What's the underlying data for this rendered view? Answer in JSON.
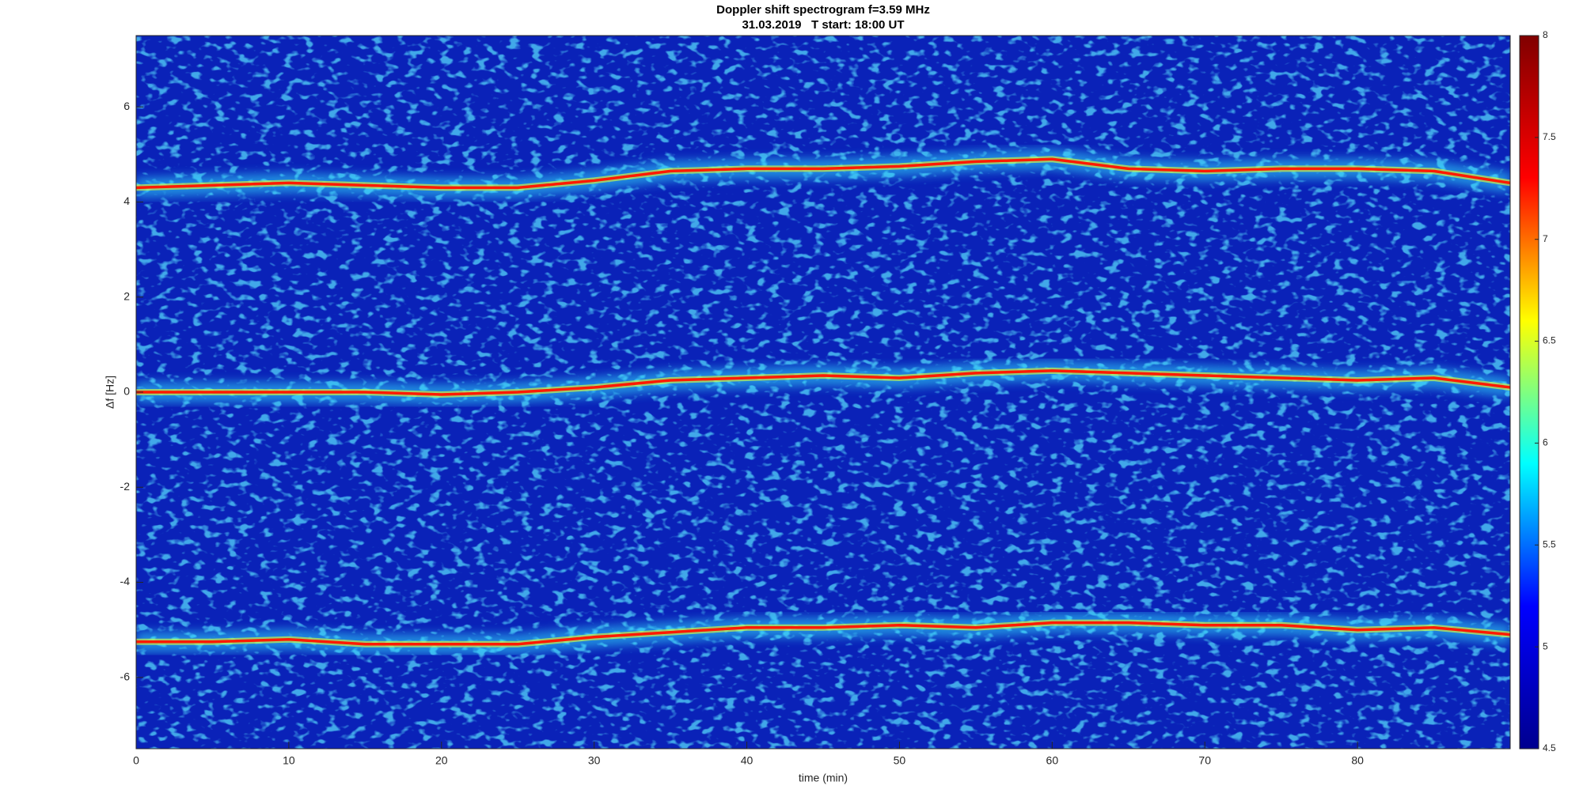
{
  "chart_data": {
    "type": "spectrogram",
    "title": "Doppler shift spectrogram f=3.59 MHz",
    "subtitle": "31.03.2019   T start: 18:00 UT",
    "x_label": "time (min)",
    "y_label": "Δf [Hz]",
    "x": [
      0,
      5,
      10,
      15,
      20,
      25,
      30,
      35,
      40,
      45,
      50,
      55,
      60,
      65,
      70,
      75,
      80,
      85,
      90
    ],
    "series": [
      {
        "color": "#ff1a00",
        "values": [
          4.3,
          4.35,
          4.4,
          4.35,
          4.3,
          4.3,
          4.45,
          4.65,
          4.7,
          4.7,
          4.75,
          4.85,
          4.9,
          4.7,
          4.65,
          4.7,
          4.7,
          4.65,
          4.4
        ]
      },
      {
        "color": "#ff1a00",
        "values": [
          0,
          0,
          0,
          0,
          -0.05,
          0,
          0.1,
          0.25,
          0.3,
          0.35,
          0.3,
          0.4,
          0.45,
          0.4,
          0.35,
          0.3,
          0.25,
          0.3,
          0.1
        ]
      },
      {
        "color": "#ff1a00",
        "values": [
          -5.25,
          -5.25,
          -5.2,
          -5.3,
          -5.3,
          -5.3,
          -5.15,
          -5.05,
          -4.95,
          -4.95,
          -4.9,
          -4.95,
          -4.85,
          -4.85,
          -4.9,
          -4.9,
          -5.0,
          -4.95,
          -5.1
        ]
      }
    ],
    "xlim": [
      0,
      90
    ],
    "xticks": [
      0,
      10,
      20,
      30,
      40,
      50,
      60,
      70,
      80
    ],
    "ylim": [
      -7.5,
      7.5
    ],
    "yticks": [
      -6,
      -4,
      -2,
      0,
      2,
      4,
      6
    ],
    "colormap": "jet",
    "clim": [
      4.5,
      8
    ],
    "cticks": [
      4.5,
      5,
      5.5,
      6,
      6.5,
      7,
      7.5,
      8
    ],
    "background_color": "#0a22b8"
  }
}
